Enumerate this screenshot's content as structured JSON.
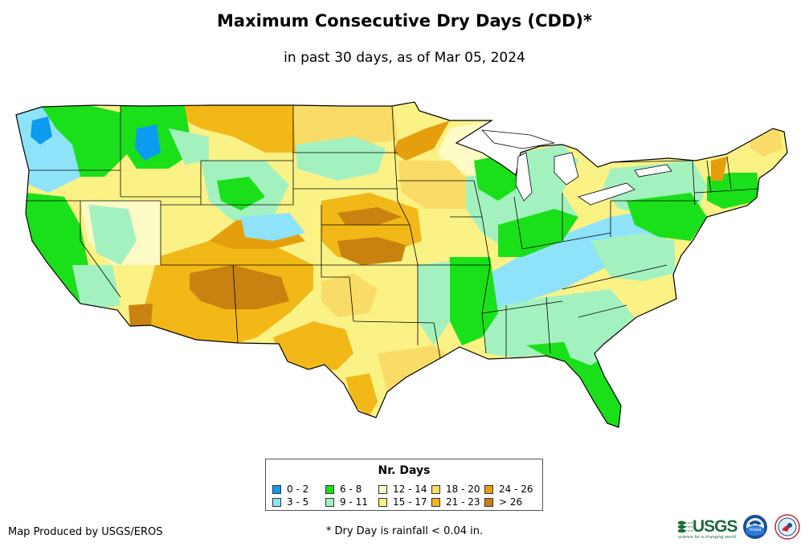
{
  "title": "Maximum Consecutive Dry Days (CDD)*",
  "subtitle": "in past 30 days, as of Mar 05, 2024",
  "legend": {
    "title": "Nr. Days",
    "items": [
      {
        "label": "0 - 2",
        "color": "#0c9bef"
      },
      {
        "label": "3 - 5",
        "color": "#8ee3fb"
      },
      {
        "label": "6 - 8",
        "color": "#1ae01a"
      },
      {
        "label": "9 - 11",
        "color": "#a4f1c0"
      },
      {
        "label": "12 - 14",
        "color": "#fdfbc5"
      },
      {
        "label": "15 - 17",
        "color": "#fbf286"
      },
      {
        "label": "18 - 20",
        "color": "#f9dc67"
      },
      {
        "label": "21 - 23",
        "color": "#f2b818"
      },
      {
        "label": "24 - 26",
        "color": "#e59f0d"
      },
      {
        "label": "> 26",
        "color": "#c9820f"
      }
    ]
  },
  "footer": {
    "credit": "Map Produced by USGS/EROS",
    "footnote": "* Dry Day is rainfall < 0.04 in."
  },
  "logos": {
    "usgs_text": "USGS",
    "usgs_tagline": "science for a changing world",
    "noaa_text": "noaa"
  }
}
